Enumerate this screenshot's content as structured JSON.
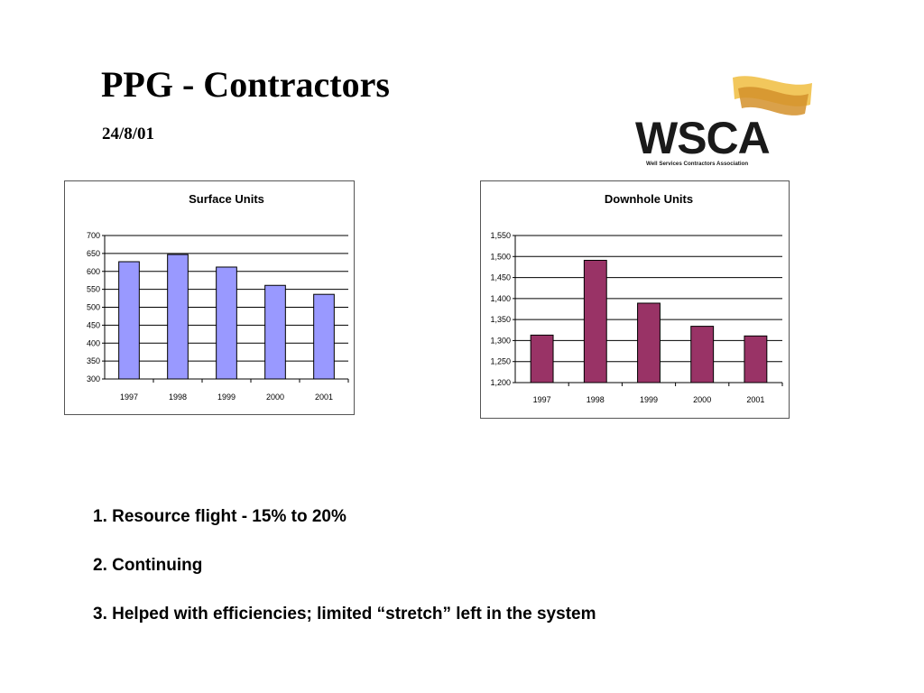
{
  "slide": {
    "title": "PPG - Contractors",
    "date": "24/8/01"
  },
  "logo": {
    "text": "WSCA",
    "subtitle": "Well Services Contractors Association",
    "colors": {
      "text": "#1a1a1a",
      "flag_light": "#f2c75c",
      "flag_dark": "#d4902a"
    }
  },
  "points": [
    "1. Resource flight  - 15% to 20%",
    "2. Continuing",
    "3. Helped with efficiencies; limited “stretch” left in the system"
  ],
  "chart_data": [
    {
      "type": "bar",
      "title": "Surface Units",
      "categories": [
        "1997",
        "1998",
        "1999",
        "2000",
        "2001"
      ],
      "values": [
        627,
        647,
        612,
        561,
        536
      ],
      "ylim": [
        300,
        700
      ],
      "yticks": [
        300,
        350,
        400,
        450,
        500,
        550,
        600,
        650,
        700
      ],
      "ytick_labels": [
        "300",
        "350",
        "400",
        "450",
        "500",
        "550",
        "600",
        "650",
        "700"
      ],
      "grid": true,
      "legend": "none",
      "bar_color": "#9999ff"
    },
    {
      "type": "bar",
      "title": "Downhole Units",
      "categories": [
        "1997",
        "1998",
        "1999",
        "2000",
        "2001"
      ],
      "values": [
        1313,
        1491,
        1389,
        1334,
        1311
      ],
      "ylim": [
        1200,
        1550
      ],
      "yticks": [
        1200,
        1250,
        1300,
        1350,
        1400,
        1450,
        1500,
        1550
      ],
      "ytick_labels": [
        "1,200",
        "1,250",
        "1,300",
        "1,350",
        "1,400",
        "1,450",
        "1,500",
        "1,550"
      ],
      "grid": true,
      "legend": "none",
      "bar_color": "#993366"
    }
  ]
}
